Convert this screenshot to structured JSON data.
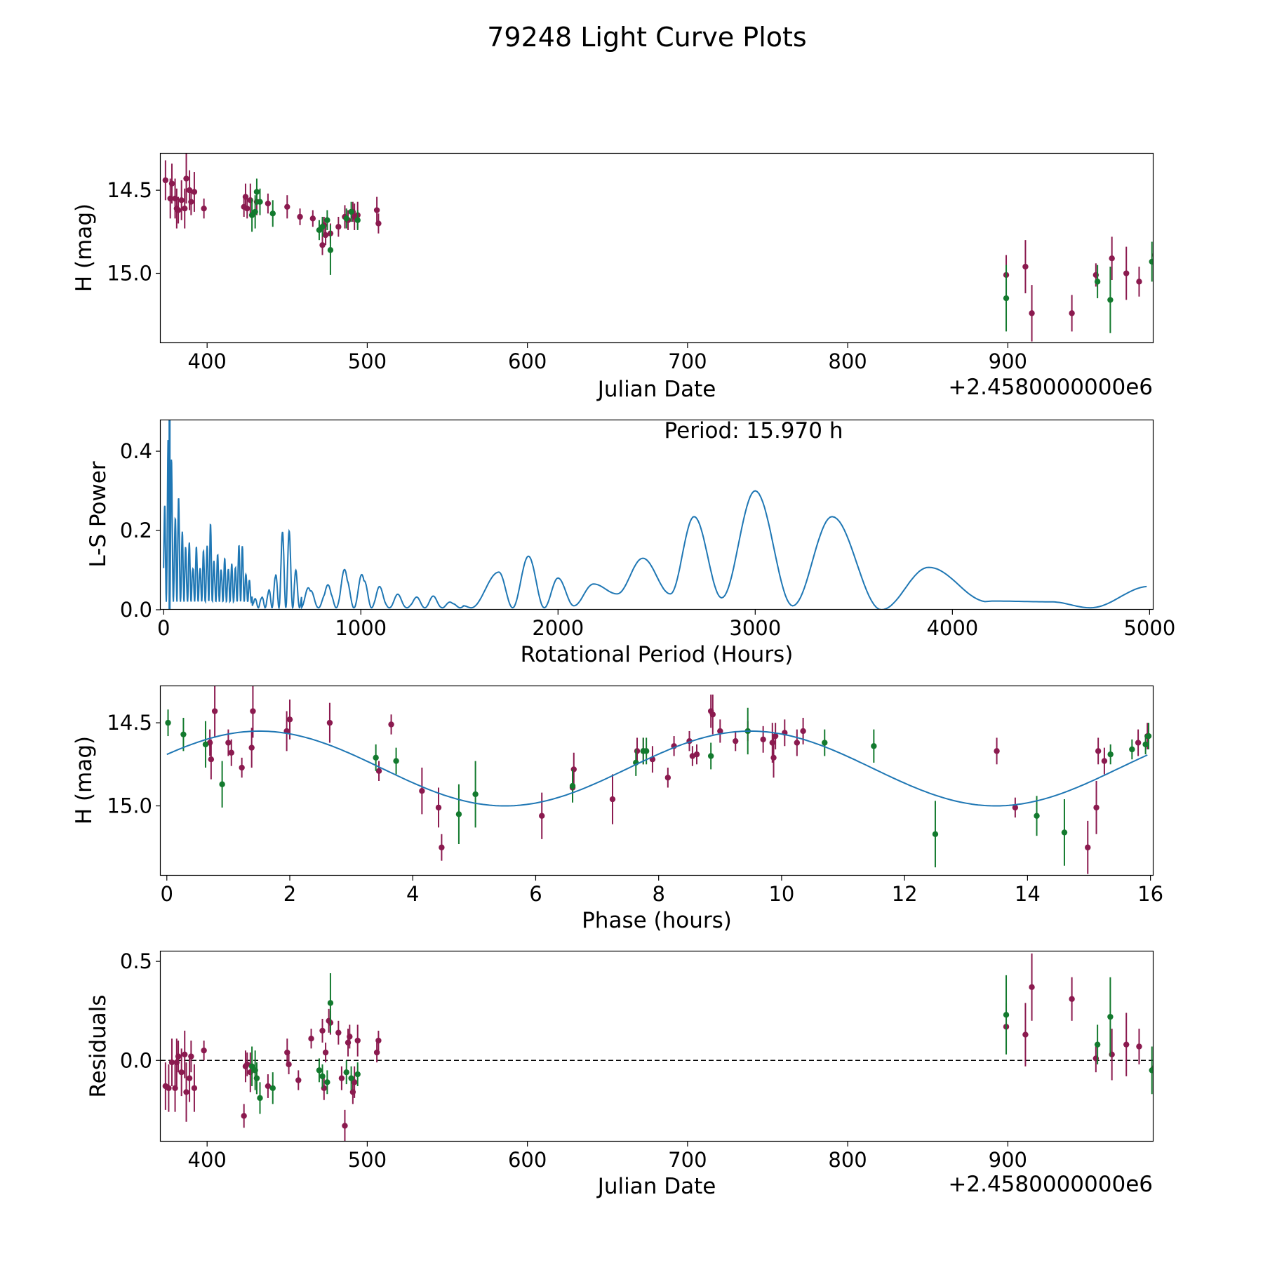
{
  "figure": {
    "title": "79248 Light Curve Plots",
    "colors": {
      "maroon": "#8b1a4f",
      "green": "#137a2e",
      "curve": "#1f77b4",
      "axis": "#000000"
    }
  },
  "chart_data": [
    {
      "id": "lc",
      "type": "scatter",
      "title": "",
      "xlabel": "Julian Date",
      "ylabel": "H (mag)",
      "offset_label": "+2.4580000000e6",
      "xlim": [
        371,
        991
      ],
      "ylim": [
        15.42,
        14.28
      ],
      "xticks": [
        400,
        500,
        600,
        700,
        800,
        900
      ],
      "xtick_labels": [
        "400",
        "500",
        "600",
        "700",
        "800",
        "900"
      ],
      "yticks": [
        15.0,
        14.5
      ],
      "ytick_labels": [
        "15.0",
        "14.5"
      ],
      "series": [
        {
          "name": "maroon",
          "color": "#8b1a4f",
          "x": [
            374,
            377,
            378,
            380,
            381,
            382,
            384,
            386,
            387,
            389,
            390,
            392,
            398,
            423,
            424,
            425,
            427,
            431,
            438,
            450,
            458,
            466,
            472,
            473,
            474,
            477,
            482,
            486,
            488,
            491,
            492,
            494,
            506,
            507,
            899,
            911,
            915,
            940,
            955,
            965,
            974,
            982,
            992
          ],
          "y": [
            14.44,
            14.55,
            14.46,
            14.55,
            14.61,
            14.62,
            14.56,
            14.61,
            14.43,
            14.5,
            14.57,
            14.51,
            14.61,
            14.6,
            14.54,
            14.61,
            14.56,
            14.57,
            14.58,
            14.6,
            14.66,
            14.67,
            14.83,
            14.71,
            14.77,
            14.76,
            14.72,
            14.66,
            14.68,
            14.63,
            14.66,
            14.65,
            14.62,
            14.7,
            15.01,
            14.96,
            15.24,
            15.24,
            15.01,
            14.91,
            15.0,
            15.05,
            14.89
          ],
          "err": [
            0.12,
            0.12,
            0.12,
            0.12,
            0.12,
            0.08,
            0.12,
            0.12,
            0.15,
            0.12,
            0.08,
            0.12,
            0.06,
            0.06,
            0.08,
            0.06,
            0.1,
            0.08,
            0.06,
            0.07,
            0.05,
            0.05,
            0.06,
            0.05,
            0.06,
            0.06,
            0.06,
            0.07,
            0.06,
            0.06,
            0.08,
            0.08,
            0.08,
            0.06,
            0.12,
            0.16,
            0.17,
            0.11,
            0.07,
            0.13,
            0.16,
            0.09,
            0.12
          ]
        },
        {
          "name": "green",
          "color": "#137a2e",
          "x": [
            428,
            430,
            431,
            433,
            441,
            470,
            472,
            475,
            477,
            487,
            490,
            494,
            899,
            956,
            964,
            990
          ],
          "y": [
            14.65,
            14.63,
            14.51,
            14.57,
            14.64,
            14.74,
            14.72,
            14.68,
            14.86,
            14.67,
            14.63,
            14.68,
            15.15,
            15.05,
            15.16,
            14.93
          ],
          "err": [
            0.1,
            0.1,
            0.08,
            0.08,
            0.08,
            0.06,
            0.06,
            0.06,
            0.15,
            0.06,
            0.06,
            0.06,
            0.2,
            0.1,
            0.2,
            0.12
          ]
        }
      ]
    },
    {
      "id": "ls",
      "type": "line",
      "xlabel": "Rotational Period (Hours)",
      "ylabel": "L-S Power",
      "annotation": "Period: 15.970 h",
      "xlim": [
        -15,
        5020
      ],
      "ylim": [
        0,
        0.478
      ],
      "xticks": [
        0,
        1000,
        2000,
        3000,
        4000,
        5000
      ],
      "xtick_labels": [
        "0",
        "1000",
        "2000",
        "3000",
        "4000",
        "5000"
      ],
      "yticks": [
        0.0,
        0.2,
        0.4
      ],
      "ytick_labels": [
        "0.0",
        "0.2",
        "0.4"
      ],
      "peaks": [
        [
          1700,
          0.095
        ],
        [
          1850,
          0.135
        ],
        [
          2000,
          0.08
        ],
        [
          2180,
          0.065
        ],
        [
          2430,
          0.13
        ],
        [
          2690,
          0.235
        ],
        [
          3000,
          0.3
        ],
        [
          3390,
          0.235
        ],
        [
          3880,
          0.107
        ]
      ],
      "troughs": [
        [
          1560,
          0.005
        ],
        [
          1770,
          0.005
        ],
        [
          1930,
          0.005
        ],
        [
          2080,
          0.01
        ],
        [
          2300,
          0.04
        ],
        [
          2570,
          0.04
        ],
        [
          2830,
          0.03
        ],
        [
          3190,
          0.01
        ],
        [
          3640,
          0.0
        ],
        [
          4180,
          0.02
        ],
        [
          4700,
          0.005
        ]
      ],
      "tail": [
        [
          4200,
          0.022
        ],
        [
          4500,
          0.02
        ],
        [
          4700,
          0.005
        ],
        [
          5000,
          0.059
        ]
      ],
      "spikes": [
        [
          30,
          0.478
        ],
        [
          15,
          0.33
        ],
        [
          45,
          0.25
        ],
        [
          70,
          0.29
        ],
        [
          100,
          0.19
        ],
        [
          130,
          0.15
        ],
        [
          165,
          0.14
        ],
        [
          200,
          0.13
        ],
        [
          235,
          0.2
        ],
        [
          275,
          0.12
        ],
        [
          310,
          0.11
        ],
        [
          340,
          0.1
        ],
        [
          375,
          0.1
        ],
        [
          390,
          0.155
        ],
        [
          420,
          0.07
        ],
        [
          480,
          0.03
        ],
        [
          520,
          0.04
        ],
        [
          560,
          0.08
        ],
        [
          590,
          0.12
        ],
        [
          610,
          0.2
        ],
        [
          630,
          0.2
        ],
        [
          650,
          0.13
        ],
        [
          680,
          0.06
        ],
        [
          720,
          0.06
        ],
        [
          760,
          0.05
        ],
        [
          800,
          0.05
        ],
        [
          840,
          0.06
        ],
        [
          880,
          0.09
        ],
        [
          910,
          0.1
        ],
        [
          950,
          0.095
        ],
        [
          990,
          0.095
        ],
        [
          1040,
          0.09
        ],
        [
          1080,
          0.06
        ],
        [
          1130,
          0.03
        ],
        [
          1180,
          0.035
        ],
        [
          1240,
          0.02
        ],
        [
          1300,
          0.03
        ],
        [
          1360,
          0.03
        ],
        [
          1420,
          0.02
        ],
        [
          1500,
          0.015
        ]
      ]
    },
    {
      "id": "phase",
      "type": "scatter",
      "xlabel": "Phase (hours)",
      "ylabel": "H (mag)",
      "xlim": [
        -0.1,
        16.05
      ],
      "ylim": [
        15.42,
        14.28
      ],
      "xticks": [
        0,
        2,
        4,
        6,
        8,
        10,
        12,
        14,
        16
      ],
      "xtick_labels": [
        "0",
        "2",
        "4",
        "6",
        "8",
        "10",
        "12",
        "14",
        "16"
      ],
      "yticks": [
        15.0,
        14.5
      ],
      "ytick_labels": [
        "15.0",
        "14.5"
      ],
      "model": {
        "mean": 14.775,
        "amplitude": 0.225,
        "period": 7.985,
        "peak_phase": 5.5
      },
      "series": [
        {
          "name": "maroon",
          "color": "#8b1a4f",
          "x": [
            0.7,
            0.72,
            0.78,
            1.0,
            1.05,
            1.22,
            1.38,
            1.4,
            1.95,
            2.0,
            2.65,
            3.45,
            3.65,
            4.15,
            4.42,
            4.47,
            6.1,
            6.6,
            6.62,
            7.25,
            7.65,
            7.75,
            7.9,
            8.15,
            8.25,
            8.5,
            8.55,
            8.62,
            8.85,
            8.88,
            9.0,
            9.25,
            9.45,
            9.7,
            9.85,
            9.87,
            9.9,
            10.05,
            10.25,
            10.35,
            13.5,
            13.8,
            14.98,
            15.12,
            15.15,
            15.25,
            15.8,
            15.95
          ],
          "y": [
            14.62,
            14.72,
            14.43,
            14.62,
            14.68,
            14.77,
            14.65,
            14.43,
            14.55,
            14.48,
            14.5,
            14.79,
            14.51,
            14.91,
            15.01,
            15.25,
            15.06,
            14.89,
            14.78,
            14.96,
            14.67,
            14.67,
            14.72,
            14.83,
            14.64,
            14.61,
            14.7,
            14.69,
            14.43,
            14.45,
            14.55,
            14.61,
            14.55,
            14.6,
            14.62,
            14.71,
            14.58,
            14.56,
            14.62,
            14.55,
            14.67,
            15.01,
            15.25,
            15.01,
            14.67,
            14.73,
            14.62,
            14.58
          ],
          "err": [
            0.08,
            0.12,
            0.16,
            0.08,
            0.08,
            0.06,
            0.12,
            0.16,
            0.12,
            0.12,
            0.12,
            0.06,
            0.06,
            0.14,
            0.12,
            0.08,
            0.14,
            0.08,
            0.1,
            0.15,
            0.08,
            0.08,
            0.08,
            0.06,
            0.06,
            0.06,
            0.06,
            0.06,
            0.1,
            0.12,
            0.07,
            0.06,
            0.06,
            0.08,
            0.12,
            0.12,
            0.08,
            0.08,
            0.08,
            0.08,
            0.08,
            0.06,
            0.16,
            0.16,
            0.08,
            0.08,
            0.08,
            0.08
          ]
        },
        {
          "name": "green",
          "color": "#137a2e",
          "x": [
            0.02,
            0.27,
            0.63,
            0.9,
            3.4,
            3.73,
            4.75,
            5.02,
            6.6,
            7.63,
            7.75,
            7.8,
            8.85,
            9.45,
            10.7,
            11.5,
            12.5,
            14.15,
            14.6,
            15.35,
            15.7,
            15.92,
            15.97
          ],
          "y": [
            14.5,
            14.57,
            14.63,
            14.87,
            14.71,
            14.73,
            15.05,
            14.93,
            14.88,
            14.74,
            14.67,
            14.67,
            14.7,
            14.55,
            14.62,
            14.64,
            15.17,
            15.06,
            15.16,
            14.69,
            14.66,
            14.63,
            14.58
          ],
          "err": [
            0.08,
            0.1,
            0.14,
            0.14,
            0.08,
            0.08,
            0.18,
            0.2,
            0.1,
            0.08,
            0.08,
            0.08,
            0.08,
            0.14,
            0.08,
            0.1,
            0.2,
            0.12,
            0.2,
            0.06,
            0.06,
            0.06,
            0.08
          ]
        }
      ]
    },
    {
      "id": "resid",
      "type": "scatter",
      "xlabel": "Julian Date",
      "ylabel": "Residuals",
      "offset_label": "+2.4580000000e6",
      "xlim": [
        371,
        991
      ],
      "ylim": [
        -0.41,
        0.55
      ],
      "xticks": [
        400,
        500,
        600,
        700,
        800,
        900
      ],
      "xtick_labels": [
        "400",
        "500",
        "600",
        "700",
        "800",
        "900"
      ],
      "yticks": [
        0.5,
        0.0
      ],
      "ytick_labels": [
        "0.5",
        "0.0"
      ],
      "zero_line": 0.0,
      "series": [
        {
          "name": "maroon",
          "color": "#8b1a4f",
          "x": [
            374,
            376,
            378,
            380,
            381,
            382,
            384,
            386,
            387,
            389,
            390,
            392,
            398,
            423,
            424,
            425,
            427,
            431,
            438,
            450,
            451,
            457,
            465,
            472,
            473,
            474,
            476,
            477,
            482,
            484,
            486,
            488,
            489,
            491,
            492,
            494,
            506,
            507,
            899,
            911,
            915,
            940,
            955,
            965,
            974,
            982,
            991
          ],
          "y": [
            -0.13,
            -0.14,
            -0.01,
            -0.14,
            -0.01,
            0.02,
            -0.06,
            0.03,
            -0.16,
            -0.09,
            0.02,
            -0.14,
            0.05,
            -0.28,
            -0.03,
            -0.02,
            -0.06,
            -0.09,
            -0.13,
            0.04,
            -0.02,
            -0.1,
            0.11,
            0.15,
            -0.14,
            0.04,
            0.2,
            0.19,
            0.14,
            -0.09,
            -0.33,
            0.09,
            0.12,
            -0.16,
            -0.11,
            0.1,
            0.04,
            0.1,
            0.17,
            0.13,
            0.37,
            0.31,
            0.01,
            0.03,
            0.08,
            0.07,
            -0.04
          ],
          "err": [
            0.12,
            0.12,
            0.12,
            0.12,
            0.12,
            0.08,
            0.12,
            0.12,
            0.15,
            0.12,
            0.08,
            0.12,
            0.05,
            0.06,
            0.08,
            0.06,
            0.1,
            0.08,
            0.06,
            0.07,
            0.05,
            0.05,
            0.05,
            0.06,
            0.06,
            0.05,
            0.06,
            0.06,
            0.06,
            0.06,
            0.08,
            0.07,
            0.06,
            0.06,
            0.08,
            0.08,
            0.05,
            0.05,
            0.12,
            0.16,
            0.17,
            0.11,
            0.07,
            0.13,
            0.16,
            0.09,
            0.12
          ]
        },
        {
          "name": "green",
          "color": "#137a2e",
          "x": [
            428,
            430,
            431,
            433,
            441,
            470,
            472,
            475,
            477,
            487,
            490,
            494,
            899,
            956,
            964,
            990
          ],
          "y": [
            -0.03,
            -0.05,
            -0.09,
            -0.19,
            -0.14,
            -0.05,
            -0.08,
            -0.11,
            0.29,
            -0.06,
            -0.09,
            -0.07,
            0.23,
            0.08,
            0.22,
            -0.05
          ],
          "err": [
            0.1,
            0.1,
            0.08,
            0.08,
            0.08,
            0.06,
            0.06,
            0.06,
            0.15,
            0.06,
            0.06,
            0.06,
            0.2,
            0.1,
            0.2,
            0.12
          ]
        }
      ]
    }
  ]
}
